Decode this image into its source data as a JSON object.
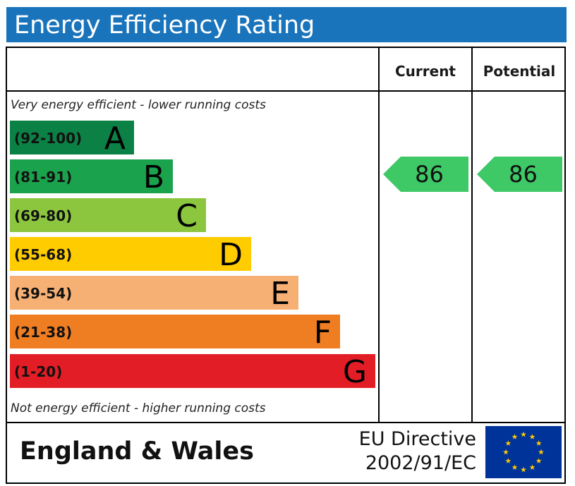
{
  "header": {
    "title": "Energy Efficiency Rating"
  },
  "columns": {
    "current": "Current",
    "potential": "Potential"
  },
  "notes": {
    "top": "Very energy efficient - lower running costs",
    "bottom": "Not energy efficient - higher running costs"
  },
  "chart_data": {
    "type": "bar",
    "title": "Energy Efficiency Rating",
    "categories": [
      "A",
      "B",
      "C",
      "D",
      "E",
      "F",
      "G"
    ],
    "ranges": [
      "(92-100)",
      "(81-91)",
      "(69-80)",
      "(55-68)",
      "(39-54)",
      "(21-38)",
      "(1-20)"
    ],
    "colors": [
      "#0b8145",
      "#1aa24c",
      "#8cc63f",
      "#ffcc00",
      "#f7b074",
      "#ef7d22",
      "#e31d25"
    ],
    "current": 86,
    "potential": 86,
    "current_band": "B",
    "potential_band": "B",
    "arrow_color": "#3ec866"
  },
  "footer": {
    "region": "England & Wales",
    "directive_line1": "EU Directive",
    "directive_line2": "2002/91/EC",
    "flag_colors": {
      "background": "#003399",
      "stars": "#ffcc00"
    }
  }
}
